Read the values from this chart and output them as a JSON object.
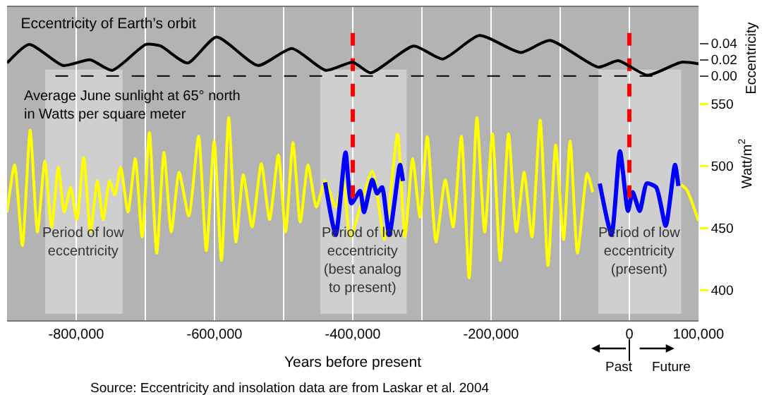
{
  "chart_data": {
    "type": "line",
    "title": "Eccentricity of Earth’s orbit",
    "xlabel": "Years before present",
    "y2label": "Watt/m$^{2}$",
    "y3label": "Eccentricity",
    "xlim": [
      -900000,
      100000
    ],
    "xticks": [
      {
        "value": -800000,
        "label": "-800,000"
      },
      {
        "value": -700000,
        "label": null
      },
      {
        "value": -600000,
        "label": "-600,000"
      },
      {
        "value": -500000,
        "label": null
      },
      {
        "value": -400000,
        "label": "-400,000"
      },
      {
        "value": -300000,
        "label": null
      },
      {
        "value": -200000,
        "label": "-200,000"
      },
      {
        "value": -100000,
        "label": null
      },
      0,
      {
        "value": 100000,
        "label": "100,000"
      }
    ],
    "y2lim": [
      376,
      628
    ],
    "y2ticks": [
      400,
      450,
      500,
      550
    ],
    "y3lim": [
      -0.301,
      0.085
    ],
    "y3ticks": [
      {
        "value": 0,
        "label": "0.00"
      },
      0.02,
      0.04
    ],
    "grid": "x",
    "series": [
      {
        "color": "#000000",
        "axis": "y3",
        "x": [
          -900000,
          -868000,
          -819000,
          -780000,
          -748000,
          -699000,
          -678000,
          -639000,
          -597000,
          -537000,
          -488000,
          -439000,
          -400000,
          -374000,
          -312000,
          -270000,
          -217000,
          -157000,
          -115000,
          -45000,
          -16000,
          26000,
          75000,
          100000
        ],
        "values": [
          0.016,
          0.039,
          0.013,
          0.02,
          0.007,
          0.039,
          0.037,
          0.016,
          0.048,
          0.013,
          0.034,
          0.007,
          0.017,
          0.004,
          0.037,
          0.021,
          0.05,
          0.029,
          0.044,
          0.011,
          0.019,
          0.001,
          0.017,
          0.015
        ]
      },
      {
        "color": "#ffff00",
        "axis": "y2",
        "x": [
          -900000,
          -889000,
          -877800,
          -866600,
          -856000,
          -845400,
          -835600,
          -825700,
          -817300,
          -808200,
          -799000,
          -789100,
          -779300,
          -769400,
          -761000,
          -751800,
          -744100,
          -735700,
          -725100,
          -714500,
          -704700,
          -694100,
          -683600,
          -673000,
          -662500,
          -651200,
          -637100,
          -623000,
          -611800,
          -600500,
          -590000,
          -579400,
          -568900,
          -558300,
          -545600,
          -532300,
          -520300,
          -507600,
          -497100,
          -486500,
          -476000,
          -464700,
          -452700,
          -440000,
          -424600,
          -414000,
          -403500,
          -371800,
          -354200,
          -335200,
          -324600,
          -313400,
          -302800,
          -292300,
          -279600,
          -266200,
          -254900,
          -243000,
          -231700,
          -220500,
          -209200,
          -198000,
          -186700,
          -174700,
          -163500,
          -152200,
          -140900,
          -129000,
          -117700,
          -106500,
          -95200,
          -85600,
          -75000,
          -61000,
          -53000,
          0,
          75000,
          83000,
          100000
        ],
        "values": [
          463,
          501,
          436,
          529,
          447,
          504,
          451,
          499,
          463,
          483,
          457,
          507,
          447,
          488,
          457,
          488,
          477,
          499,
          463,
          506,
          443,
          527,
          430,
          511,
          447,
          495,
          460,
          524,
          432,
          520,
          424,
          539,
          439,
          493,
          451,
          502,
          457,
          509,
          447,
          519,
          455,
          501,
          467,
          488,
          467,
          490,
          443,
          496,
          441,
          526,
          443,
          506,
          459,
          524,
          439,
          489,
          451,
          524,
          410,
          539,
          447,
          526,
          424,
          526,
          447,
          495,
          443,
          537,
          420,
          517,
          441,
          520,
          430,
          494,
          479,
          null,
          485,
          481,
          456
        ]
      },
      {
        "color": "#0000ff",
        "axis": "y2",
        "x": [
          -440000,
          -424600,
          -410500,
          -402000,
          -389400,
          -383800,
          -371800,
          -364800,
          -357700,
          -347200,
          -331700,
          -327500,
          -200000,
          -42800,
          -25800,
          -13600,
          -2000,
          4800,
          15000,
          25200,
          38800,
          52500,
          66000,
          70900
        ],
        "values": [
          487,
          445,
          511,
          470,
          480,
          463,
          489,
          478,
          483,
          445,
          501,
          488,
          null,
          486,
          445,
          512,
          464,
          479,
          464,
          486,
          483,
          452,
          501,
          484
        ]
      }
    ],
    "ref_lines": [
      {
        "axis": "x",
        "value": -400000,
        "color": "#ff0000",
        "line_style": "dashed"
      },
      {
        "axis": "x",
        "value": 0,
        "color": "#ff0000",
        "line_style": "dashed"
      },
      {
        "axis": "y3",
        "value": 0,
        "color": "#000000",
        "line_style": "dashed"
      }
    ],
    "bands": [
      {
        "axis": "x",
        "from": -845000,
        "to": -733000,
        "label": "Period of low\neccentricity",
        "color": "#cfcfcf"
      },
      {
        "axis": "x",
        "from": -447000,
        "to": -322000,
        "label": "Period of low\neccentricity\n(best analog\nto present)",
        "color": "#cfcfcf"
      },
      {
        "axis": "x",
        "from": -45000,
        "to": 75000,
        "label": "Period of low\neccentricity\n(present)",
        "color": "#cfcfcf"
      }
    ],
    "annotations": [
      "Average June sunlight at 65° north\nin Watts per square meter",
      "Source: Eccentricity and insolation data are from Laskar et al. 2004",
      "Past",
      "Future"
    ]
  }
}
